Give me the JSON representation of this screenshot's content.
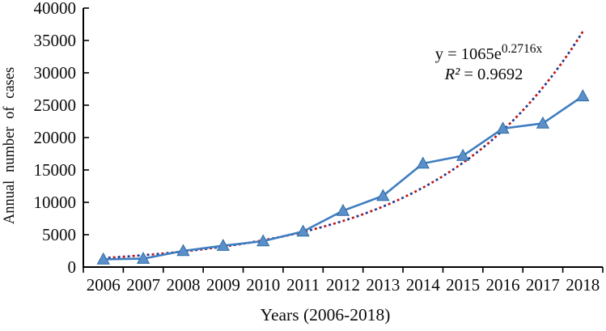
{
  "figure": {
    "background": "#ffffff"
  },
  "chart_data": {
    "type": "line",
    "title": "",
    "xlabel": "Years (2006-2018)",
    "ylabel": "Annual number of cases",
    "categories": [
      "2006",
      "2007",
      "2008",
      "2009",
      "2010",
      "2011",
      "2012",
      "2013",
      "2014",
      "2015",
      "2016",
      "2017",
      "2018"
    ],
    "series": [
      {
        "name": "Annual number of cases",
        "values": [
          1200,
          1300,
          2500,
          3300,
          4000,
          5500,
          8700,
          11000,
          16000,
          17200,
          21400,
          22200,
          26400
        ],
        "line_color": "#3e7dc0",
        "marker": "triangle-up",
        "marker_fill": "#5b8fc9",
        "marker_edge": "#2e6da4"
      }
    ],
    "trendline": {
      "type": "exponential",
      "a": 1065,
      "b": 0.2716,
      "r_squared": 0.9692,
      "equation_base": "y = 1065e",
      "equation_exponent": "0.2716x",
      "r2_lhs": "R²",
      "r2_rhs": " = 0.9692",
      "style": "dotted",
      "dot_color_primary": "#c01414",
      "dot_color_secondary": "#27368f"
    },
    "ylim": [
      0,
      40000
    ],
    "ytick_step": 5000,
    "grid": false,
    "legend_position": "none",
    "axis_color": "#000000",
    "text_color": "#0b0b0b"
  }
}
